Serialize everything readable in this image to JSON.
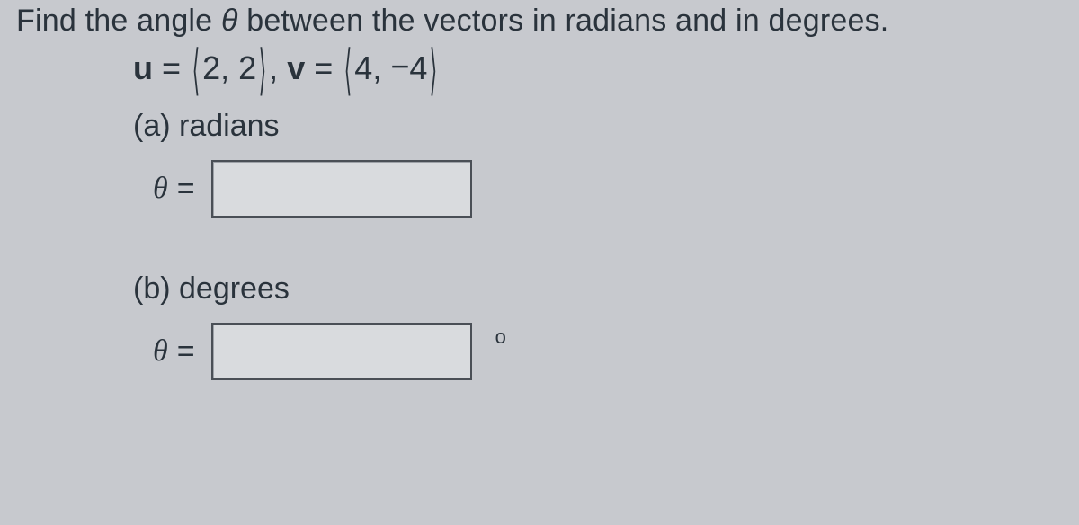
{
  "prompt": {
    "before_theta": "Find the angle ",
    "theta": "θ",
    "after_theta": " between the vectors in radians and in degrees."
  },
  "vectors": {
    "u_label": "u",
    "eq": " = ",
    "open": "⟨",
    "u_vals": "2, 2",
    "close": "⟩",
    "sep": ", ",
    "v_label": "v",
    "v_val1": "4, ",
    "v_neg": "−",
    "v_val2": "4"
  },
  "part_a": {
    "label": "(a) radians",
    "theta": "θ",
    "eq": "=",
    "value": ""
  },
  "part_b": {
    "label": "(b) degrees",
    "theta": "θ",
    "eq": "=",
    "value": "",
    "degree_mark": "o"
  },
  "colors": {
    "background": "#c7c9ce",
    "text": "#2a333c",
    "input_bg": "#d9dbde",
    "input_border": "#4a4f56"
  }
}
